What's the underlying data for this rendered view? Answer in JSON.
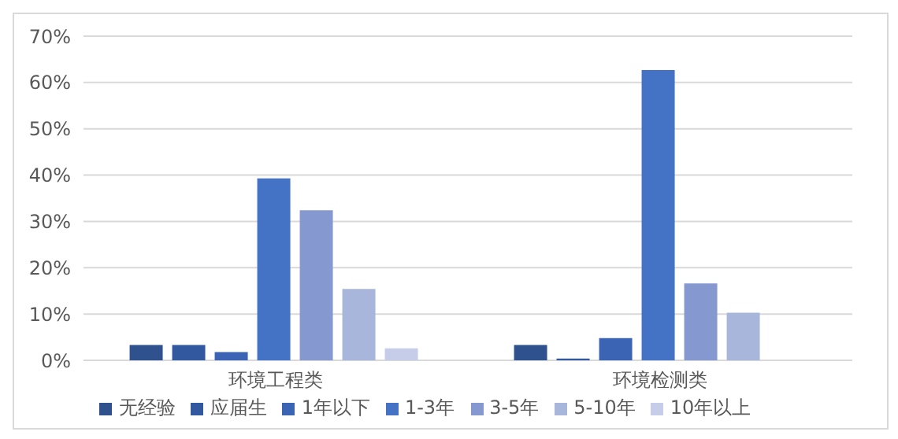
{
  "chart_data": {
    "type": "bar",
    "categories": [
      "环境工程类",
      "环境检测类"
    ],
    "series": [
      {
        "name": "无经验",
        "color": "#2f528f",
        "values": [
          3.3,
          3.3
        ]
      },
      {
        "name": "应届生",
        "color": "#3259a0",
        "values": [
          3.3,
          0.4
        ]
      },
      {
        "name": "1年以下",
        "color": "#3b64b4",
        "values": [
          1.8,
          4.8
        ]
      },
      {
        "name": "1-3年",
        "color": "#4472c4",
        "values": [
          39.3,
          62.7
        ]
      },
      {
        "name": "3-5年",
        "color": "#8599d0",
        "values": [
          32.4,
          16.6
        ]
      },
      {
        "name": "5-10年",
        "color": "#a8b6db",
        "values": [
          15.4,
          10.3
        ]
      },
      {
        "name": "10年以上",
        "color": "#c5cde8",
        "values": [
          2.6,
          0
        ]
      }
    ],
    "ylim": [
      0,
      70
    ],
    "yticks": [
      {
        "value": 0,
        "label": "0%"
      },
      {
        "value": 10,
        "label": "10%"
      },
      {
        "value": 20,
        "label": "20%"
      },
      {
        "value": 30,
        "label": "30%"
      },
      {
        "value": 40,
        "label": "40%"
      },
      {
        "value": 50,
        "label": "50%"
      },
      {
        "value": 60,
        "label": "60%"
      },
      {
        "value": 70,
        "label": "70%"
      }
    ],
    "grid": "y",
    "legend": "bottom"
  }
}
